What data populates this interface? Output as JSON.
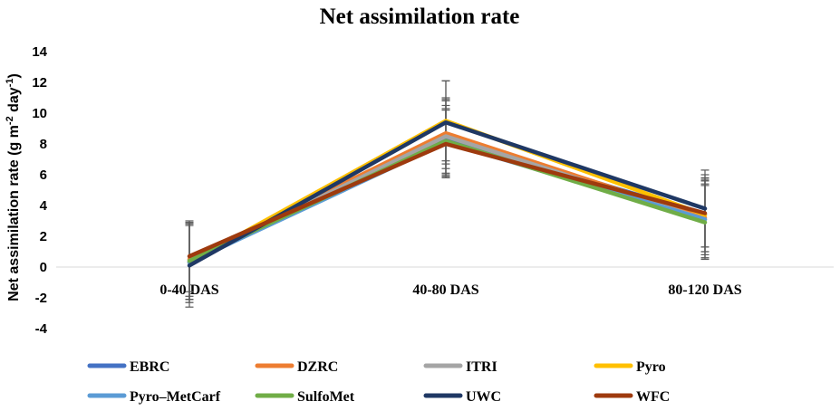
{
  "chart_data": {
    "type": "line",
    "title": "Net assimilation rate",
    "xlabel": "",
    "ylabel": {
      "prefix": "Net assimilation rate (g m",
      "sup1": "-2",
      "mid": " day",
      "sup2": "-1",
      "suffix": ")"
    },
    "ylim": [
      -4,
      14
    ],
    "yticks": [
      -4,
      -2,
      0,
      2,
      4,
      6,
      8,
      10,
      12,
      14
    ],
    "grid": false,
    "legend_position": "bottom",
    "categories": [
      "0-40 DAS",
      "40-80 DAS",
      "80-120 DAS"
    ],
    "series": [
      {
        "name": "EBRC",
        "color": "#4472C4",
        "values": [
          0.3,
          8.4,
          3.4
        ],
        "errors": [
          2.6,
          2.4,
          2.4
        ]
      },
      {
        "name": "DZRC",
        "color": "#ED7D31",
        "values": [
          0.5,
          8.7,
          3.2
        ],
        "errors": [
          2.4,
          2.3,
          2.2
        ]
      },
      {
        "name": "ITRI",
        "color": "#A5A5A5",
        "values": [
          0.4,
          8.5,
          3.1
        ],
        "errors": [
          2.5,
          2.4,
          2.5
        ]
      },
      {
        "name": "Pyro",
        "color": "#FFC000",
        "values": [
          0.3,
          9.5,
          3.4
        ],
        "errors": [
          2.6,
          2.6,
          2.6
        ]
      },
      {
        "name": "Pyro–MetCarf",
        "color": "#5B9BD5",
        "values": [
          0.3,
          8.1,
          3.1
        ],
        "errors": [
          2.4,
          2.2,
          2.5
        ]
      },
      {
        "name": "SulfoMet",
        "color": "#70AD47",
        "values": [
          0.4,
          8.2,
          2.9
        ],
        "errors": [
          2.5,
          2.3,
          2.4
        ]
      },
      {
        "name": "UWC",
        "color": "#1F3864",
        "values": [
          0.1,
          9.4,
          3.8
        ],
        "errors": [
          2.7,
          2.7,
          2.5
        ]
      },
      {
        "name": "WFC",
        "color": "#9E3A0E",
        "values": [
          0.7,
          8.0,
          3.5
        ],
        "errors": [
          2.3,
          2.2,
          2.2
        ]
      }
    ]
  }
}
